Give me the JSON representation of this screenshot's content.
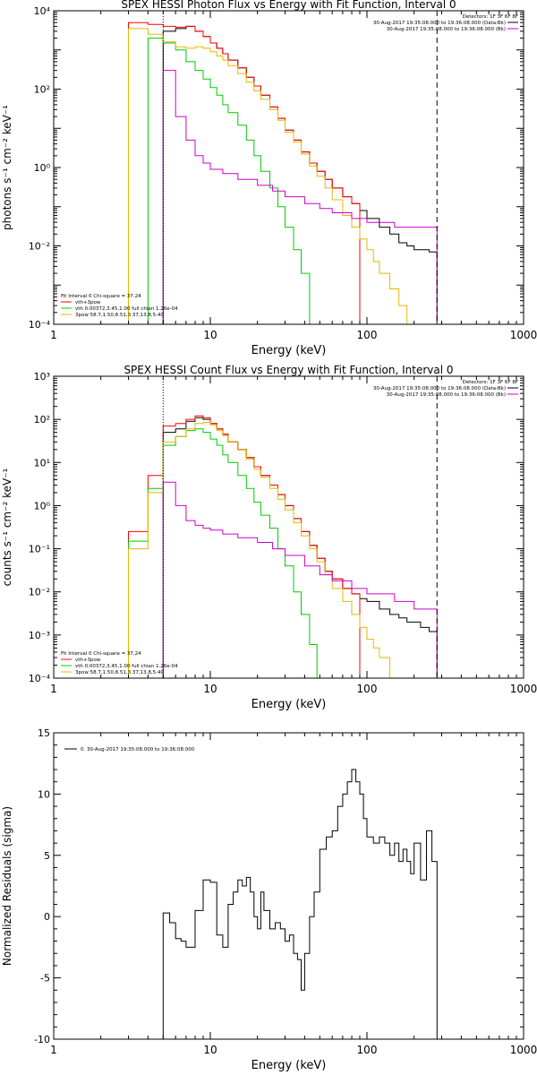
{
  "chart_data": [
    {
      "type": "line",
      "title": "SPEX HESSI Photon Flux vs Energy with Fit Function, Interval 0",
      "xlabel": "Energy (keV)",
      "ylabel": "photons s⁻¹ cm⁻² keV⁻¹",
      "x_scale": "log",
      "y_scale": "log",
      "xlim": [
        1,
        1000
      ],
      "ylim": [
        0.0001,
        10000
      ],
      "x_ticks": [
        1,
        10,
        100,
        1000
      ],
      "x_tick_labels": [
        "1",
        "10",
        "100",
        "1000"
      ],
      "y_ticks": [
        0.0001,
        0.01,
        1,
        100,
        10000
      ],
      "y_tick_labels": [
        "10⁻⁴",
        "10⁻²",
        "10⁰",
        "10²",
        "10⁴"
      ],
      "grid": false,
      "legend_top": [
        "Detectors: 1F 3F 6F 8F",
        "30-Aug-2017 19:35:08.000 to 19:36:08.000 (Data-Bk)",
        "30-Aug-2017 19:35:08.000 to 19:36:08.000 (Bk)"
      ],
      "legend_top_colors": [
        "",
        "#000000",
        "#cc00cc"
      ],
      "legend_bottom_header": "Fit Interval 0    Chi-square = 37.24",
      "legend_bottom": [
        "vth+3pow",
        "vth 0.00372,3.45,1.00  full chian 1.26e-04",
        "3pow 58.7,1.50,8.51,3.37,13.8,5.40"
      ],
      "legend_bottom_colors": [
        "#ff0000",
        "#00cc00",
        "#e6b800"
      ],
      "vlines": [
        {
          "x": 5,
          "style": "dotted"
        },
        {
          "x": 280,
          "style": "dashed"
        }
      ],
      "series": [
        {
          "color": "#000000",
          "x": [
            5,
            6,
            7,
            8,
            9,
            10,
            11,
            12,
            13,
            15,
            17,
            19,
            21,
            24,
            27,
            30,
            34,
            38,
            43,
            48,
            54,
            60,
            70,
            80,
            90,
            100,
            120,
            140,
            160,
            180,
            200,
            220,
            250,
            280
          ],
          "y": [
            3000,
            3500,
            4000,
            3000,
            2200,
            1500,
            1100,
            800,
            550,
            350,
            200,
            120,
            70,
            35,
            18,
            9,
            5,
            2.5,
            1.3,
            0.8,
            0.5,
            0.3,
            0.18,
            0.12,
            0.08,
            0.05,
            0.03,
            0.02,
            0.012,
            0.01,
            0.008,
            0.008,
            0.007,
            0.007
          ]
        },
        {
          "color": "#ff0000",
          "x": [
            3,
            4,
            5,
            6,
            7,
            8,
            9,
            10,
            11,
            12,
            13,
            15,
            17,
            19,
            21,
            24,
            27,
            30,
            34,
            38,
            43,
            48,
            54,
            60,
            70,
            80,
            90
          ],
          "y": [
            5000,
            4500,
            4000,
            3800,
            4000,
            3000,
            2200,
            1500,
            1100,
            800,
            550,
            350,
            200,
            120,
            70,
            35,
            18,
            9,
            5,
            2.5,
            1.3,
            0.8,
            0.5,
            0.3,
            0.18,
            0.12,
            0.08
          ]
        },
        {
          "color": "#00cc00",
          "x": [
            4,
            5,
            6,
            7,
            8,
            9,
            10,
            11,
            12,
            13,
            15,
            17,
            19,
            21,
            24,
            27,
            30,
            34,
            38,
            43
          ],
          "y": [
            2000,
            1500,
            1000,
            500,
            300,
            180,
            110,
            70,
            40,
            25,
            12,
            5,
            2,
            0.8,
            0.3,
            0.1,
            0.03,
            0.008,
            0.002,
            0.0003
          ]
        },
        {
          "color": "#e6b800",
          "x": [
            3,
            4,
            5,
            6,
            7,
            8,
            9,
            10,
            11,
            12,
            13,
            15,
            17,
            19,
            21,
            24,
            27,
            30,
            34,
            38,
            43,
            48,
            54,
            60,
            70,
            80,
            90,
            100,
            110,
            120,
            140,
            160,
            180
          ],
          "y": [
            3500,
            2500,
            1600,
            1200,
            1100,
            1200,
            1100,
            900,
            700,
            550,
            400,
            250,
            150,
            90,
            55,
            30,
            16,
            8,
            4.5,
            2.2,
            1.1,
            0.6,
            0.3,
            0.15,
            0.06,
            0.03,
            0.015,
            0.008,
            0.004,
            0.002,
            0.0008,
            0.0003,
            0.0001
          ]
        },
        {
          "color": "#cc00cc",
          "x": [
            5,
            6,
            7,
            8,
            9,
            10,
            12,
            15,
            20,
            25,
            30,
            40,
            50,
            60,
            80,
            100,
            150,
            200,
            280
          ],
          "y": [
            300,
            20,
            5,
            2,
            1.3,
            0.9,
            0.7,
            0.5,
            0.35,
            0.25,
            0.18,
            0.12,
            0.09,
            0.07,
            0.05,
            0.04,
            0.03,
            0.03,
            0.025
          ]
        }
      ]
    },
    {
      "type": "line",
      "title": "SPEX HESSI Count Flux vs Energy with Fit Function, Interval 0",
      "xlabel": "Energy (keV)",
      "ylabel": "counts s⁻¹ cm⁻² keV⁻¹",
      "x_scale": "log",
      "y_scale": "log",
      "xlim": [
        1,
        1000
      ],
      "ylim": [
        0.0001,
        1000
      ],
      "x_ticks": [
        1,
        10,
        100,
        1000
      ],
      "x_tick_labels": [
        "1",
        "10",
        "100",
        "1000"
      ],
      "y_ticks": [
        0.0001,
        0.001,
        0.01,
        0.1,
        1,
        10,
        100,
        1000
      ],
      "y_tick_labels": [
        "10⁻⁴",
        "10⁻³",
        "10⁻²",
        "10⁻¹",
        "10⁰",
        "10¹",
        "10²",
        "10³"
      ],
      "grid": false,
      "legend_top": [
        "Detectors: 1F 3F 6F 8F",
        "30-Aug-2017 19:35:08.000 to 19:36:08.000 (Data-Bk)",
        "30-Aug-2017 19:35:08.000 to 19:36:08.000 (Bk)"
      ],
      "legend_top_colors": [
        "",
        "#000000",
        "#cc00cc"
      ],
      "legend_bottom_header": "Fit Interval 0    Chi-square = 37.24",
      "legend_bottom": [
        "vth+3pow",
        "vth 0.00372,3.45,1.00  full chian 1.26e-04",
        "3pow 58.7,1.50,8.51,3.37,13.8,5.40"
      ],
      "legend_bottom_colors": [
        "#ff0000",
        "#00cc00",
        "#e6b800"
      ],
      "vlines": [
        {
          "x": 5,
          "style": "dotted"
        },
        {
          "x": 280,
          "style": "dashed"
        }
      ],
      "series": [
        {
          "color": "#000000",
          "x": [
            5,
            6,
            7,
            8,
            9,
            10,
            11,
            12,
            13,
            15,
            17,
            19,
            21,
            24,
            27,
            30,
            34,
            38,
            43,
            48,
            54,
            60,
            70,
            80,
            90,
            100,
            120,
            140,
            160,
            180,
            200,
            220,
            250,
            280
          ],
          "y": [
            50,
            60,
            90,
            110,
            100,
            80,
            60,
            45,
            30,
            20,
            13,
            8,
            5,
            3,
            1.8,
            1,
            0.5,
            0.25,
            0.12,
            0.06,
            0.03,
            0.02,
            0.012,
            0.009,
            0.007,
            0.006,
            0.004,
            0.003,
            0.0025,
            0.002,
            0.002,
            0.0015,
            0.0012,
            0.001
          ]
        },
        {
          "color": "#ff0000",
          "x": [
            3,
            4,
            5,
            6,
            7,
            8,
            9,
            10,
            11,
            12,
            13,
            15,
            17,
            19,
            21,
            24,
            27,
            30,
            34,
            38,
            43,
            48,
            54,
            60,
            70,
            80,
            90
          ],
          "y": [
            0.25,
            5,
            70,
            80,
            100,
            120,
            110,
            80,
            60,
            45,
            30,
            20,
            13,
            8,
            5,
            3,
            1.8,
            1,
            0.5,
            0.25,
            0.12,
            0.06,
            0.03,
            0.02,
            0.012,
            0.009,
            0.007
          ]
        },
        {
          "color": "#00cc00",
          "x": [
            3,
            4,
            5,
            6,
            7,
            8,
            9,
            10,
            11,
            12,
            13,
            15,
            17,
            19,
            21,
            24,
            27,
            30,
            34,
            38,
            43,
            48
          ],
          "y": [
            0.15,
            2.5,
            25,
            40,
            55,
            60,
            50,
            35,
            25,
            15,
            10,
            5,
            2.5,
            1.2,
            0.6,
            0.3,
            0.1,
            0.04,
            0.01,
            0.003,
            0.0006,
            0.0001
          ]
        },
        {
          "color": "#e6b800",
          "x": [
            3,
            4,
            5,
            6,
            7,
            8,
            9,
            10,
            11,
            12,
            13,
            15,
            17,
            19,
            21,
            24,
            27,
            30,
            34,
            38,
            43,
            48,
            54,
            60,
            70,
            80,
            90,
            100,
            110,
            120,
            140
          ],
          "y": [
            0.1,
            2,
            30,
            40,
            60,
            80,
            85,
            75,
            55,
            42,
            30,
            20,
            12,
            7,
            4.5,
            2.5,
            1.4,
            0.8,
            0.4,
            0.2,
            0.1,
            0.05,
            0.025,
            0.012,
            0.006,
            0.003,
            0.0015,
            0.0008,
            0.0005,
            0.0003,
            0.0001
          ]
        },
        {
          "color": "#cc00cc",
          "x": [
            5,
            6,
            7,
            8,
            9,
            10,
            12,
            15,
            20,
            25,
            30,
            40,
            50,
            60,
            80,
            100,
            150,
            200,
            280
          ],
          "y": [
            3.5,
            1,
            0.45,
            0.35,
            0.3,
            0.27,
            0.22,
            0.18,
            0.14,
            0.1,
            0.07,
            0.04,
            0.025,
            0.018,
            0.012,
            0.009,
            0.006,
            0.004,
            0.003
          ]
        }
      ]
    },
    {
      "type": "line",
      "title": "",
      "xlabel": "Energy (keV)",
      "ylabel": "Normalized Residuals (sigma)",
      "x_scale": "log",
      "y_scale": "linear",
      "xlim": [
        1,
        1000
      ],
      "ylim": [
        -10,
        15
      ],
      "x_ticks": [
        1,
        10,
        100,
        1000
      ],
      "x_tick_labels": [
        "1",
        "10",
        "100",
        "1000"
      ],
      "y_ticks": [
        -10,
        -5,
        0,
        5,
        10,
        15
      ],
      "y_tick_labels": [
        "-10",
        "-5",
        "0",
        "5",
        "10",
        "15"
      ],
      "grid": false,
      "legend_top": [
        "0. 30-Aug-2017 19:35:08.000 to 19:36:08.000"
      ],
      "legend_top_colors": [
        "#000000"
      ],
      "series": [
        {
          "color": "#000000",
          "step": true,
          "x": [
            5,
            5.5,
            6,
            6.5,
            7,
            7.5,
            8,
            9,
            10,
            11,
            12,
            13,
            14,
            15,
            16,
            17,
            18,
            19,
            20,
            21,
            22,
            24,
            26,
            28,
            30,
            32,
            34,
            36,
            38,
            40,
            43,
            46,
            50,
            55,
            60,
            65,
            70,
            75,
            80,
            85,
            90,
            95,
            100,
            110,
            120,
            130,
            140,
            150,
            160,
            170,
            180,
            190,
            200,
            220,
            240,
            260,
            280
          ],
          "y": [
            0.3,
            -0.5,
            -1.8,
            -2,
            -2.5,
            -2.5,
            0.5,
            3,
            2.8,
            -1.5,
            -2.5,
            1,
            2,
            3,
            2.5,
            3.2,
            2,
            0,
            -1,
            2,
            0.5,
            -1,
            -0.5,
            -1,
            -2,
            -1.5,
            -3,
            -3.5,
            -6,
            -3,
            0,
            2,
            5.5,
            6.5,
            7,
            9,
            10,
            11,
            12,
            11,
            10,
            8,
            6.5,
            6,
            6.5,
            6,
            5,
            6,
            4.5,
            5.5,
            4.5,
            3.5,
            6,
            3,
            7,
            4.5,
            4.5
          ]
        }
      ]
    }
  ]
}
